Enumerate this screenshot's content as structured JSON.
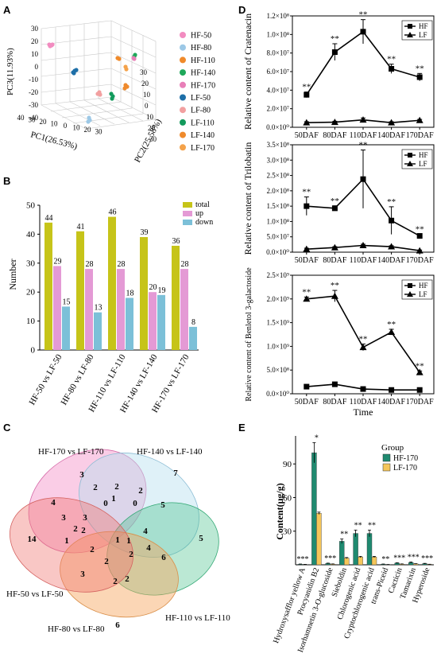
{
  "panels": {
    "A": "A",
    "B": "B",
    "C": "C",
    "D": "D",
    "E": "E"
  },
  "chart_data": [
    {
      "panel": "A",
      "type": "scatter",
      "title": "",
      "xlabel": "PC1(26.53%)",
      "ylabel": "PC2(25.58%)",
      "zlabel": "PC3(11.93%)",
      "x_ticks": [
        "40",
        "30",
        "20",
        "10",
        "0",
        "10",
        "20",
        "30"
      ],
      "y_ticks": [
        "30",
        "20",
        "10",
        "0",
        "10",
        "20",
        "30"
      ],
      "z_ticks": [
        "30",
        "20",
        "10",
        "0",
        "-10",
        "-20",
        "-30",
        "-40"
      ],
      "legend": [
        {
          "name": "HF-50",
          "color": "#f28cc0"
        },
        {
          "name": "HF-80",
          "color": "#9cc8e6"
        },
        {
          "name": "HF-110",
          "color": "#f08a2a"
        },
        {
          "name": "HF-140",
          "color": "#1fa85a"
        },
        {
          "name": "HF-170",
          "color": "#e87fb8"
        },
        {
          "name": "LF-50",
          "color": "#1e6fa8"
        },
        {
          "name": "LF-80",
          "color": "#f2a0a0"
        },
        {
          "name": "LF-110",
          "color": "#139a5c"
        },
        {
          "name": "LF-140",
          "color": "#ef8a2c"
        },
        {
          "name": "LF-170",
          "color": "#f4a24a"
        }
      ],
      "legend_placement": "right",
      "grid": true
    },
    {
      "panel": "B",
      "type": "bar",
      "ylabel": "Number",
      "ylim": [
        0,
        50
      ],
      "yticks": [
        0,
        10,
        20,
        30,
        40,
        50
      ],
      "categories": [
        "HF-50 vs LF-50",
        "HF-80 vs LF-80",
        "HF-110 vs LF-110",
        "HF-140 vs LF-140",
        "HF-170 vs LF-170"
      ],
      "series": [
        {
          "name": "total",
          "color": "#c6c419",
          "values": [
            44,
            41,
            46,
            39,
            36
          ]
        },
        {
          "name": "up",
          "color": "#e49ad5",
          "values": [
            29,
            28,
            28,
            20,
            28
          ]
        },
        {
          "name": "down",
          "color": "#7cc0d8",
          "values": [
            15,
            13,
            18,
            19,
            8
          ]
        }
      ],
      "legend_placement": "top-right"
    },
    {
      "panel": "C",
      "type": "venn",
      "sets": [
        "HF-170 vs LF-170",
        "HF-140 vs LF-140",
        "HF-110 vs LF-110",
        "HF-80 vs LF-80",
        "HF-50 vs LF-50"
      ],
      "region_labels": [
        "3",
        "7",
        "5",
        "6",
        "14",
        "2",
        "3",
        "0",
        "1",
        "2",
        "0",
        "2",
        "5",
        "4",
        "3",
        "2",
        "1",
        "2",
        "2",
        "2",
        "4",
        "1",
        "4",
        "2",
        "2",
        "6",
        "3",
        "1",
        "2"
      ]
    },
    {
      "panel": "D1",
      "type": "line",
      "ylabel": "Relative content of Cratenacin",
      "categories": [
        "50DAF",
        "80DAF",
        "110DAF",
        "140DAF",
        "170DAF"
      ],
      "ylim": [
        0,
        120000000
      ],
      "ytick_labels": [
        "0.0×10⁰",
        "2.0×10⁷",
        "4.0×10⁷",
        "6.0×10⁷",
        "8.0×10⁷",
        "1.0×10⁸",
        "1.2×10⁸"
      ],
      "series": [
        {
          "name": "HF",
          "marker": "square",
          "values": [
            35000000,
            81000000,
            103000000,
            63000000,
            54000000
          ],
          "err": [
            3000000,
            9000000,
            13000000,
            5000000,
            4000000
          ]
        },
        {
          "name": "LF",
          "marker": "triangle",
          "values": [
            5000000,
            5500000,
            8000000,
            5000000,
            7500000
          ],
          "err": [
            1000000,
            1000000,
            2000000,
            1000000,
            1000000
          ]
        }
      ],
      "annotations": [
        "**",
        "**",
        "**",
        "**",
        "**"
      ]
    },
    {
      "panel": "D2",
      "type": "line",
      "ylabel": "Relative content of Trilobatin",
      "categories": [
        "50DAF",
        "80DAF",
        "110DAF",
        "140DAF",
        "170DAF"
      ],
      "ylim": [
        0,
        350000000
      ],
      "ytick_labels": [
        "0.0×10⁰",
        "5.0×10⁷",
        "1.0×10⁸",
        "1.5×10⁸",
        "2.0×10⁸",
        "2.5×10⁸",
        "3.0×10⁸",
        "3.5×10⁸"
      ],
      "series": [
        {
          "name": "HF",
          "marker": "square",
          "values": [
            150000000,
            143000000,
            238000000,
            103000000,
            53000000
          ],
          "err": [
            30000000,
            8000000,
            95000000,
            45000000,
            5000000
          ]
        },
        {
          "name": "LF",
          "marker": "triangle",
          "values": [
            10000000,
            15000000,
            22000000,
            18000000,
            5000000
          ],
          "err": [
            3000000,
            3000000,
            4000000,
            3000000,
            2000000
          ]
        }
      ],
      "annotations": [
        "**",
        "**",
        "**",
        "**",
        "**"
      ]
    },
    {
      "panel": "D3",
      "type": "line",
      "ylabel": "Relative content of Benletol 3-galactoside",
      "xlabel": "Time",
      "categories": [
        "50DAF",
        "80DAF",
        "110DAF",
        "140DAF",
        "170DAF"
      ],
      "ylim": [
        0,
        2500000000
      ],
      "ytick_labels": [
        "0.0×10⁰",
        "5.0×10⁸",
        "1.0×10⁹",
        "1.5×10⁹",
        "2.0×10⁹",
        "2.5×10⁹"
      ],
      "series": [
        {
          "name": "HF",
          "marker": "square",
          "values": [
            150000000,
            200000000,
            100000000,
            80000000,
            80000000
          ],
          "err": [
            20000000,
            20000000,
            10000000,
            10000000,
            10000000
          ]
        },
        {
          "name": "LF",
          "marker": "triangle",
          "values": [
            2000000000,
            2060000000,
            980000000,
            1300000000,
            450000000
          ],
          "err": [
            40000000,
            120000000,
            70000000,
            60000000,
            30000000
          ]
        }
      ],
      "annotations": [
        "**",
        "**",
        "**",
        "**",
        "**"
      ]
    },
    {
      "panel": "E",
      "type": "bar",
      "ylabel": "Content(μg/g)",
      "legend_title": "Group",
      "ylim": [
        0,
        115
      ],
      "yticks": [
        30,
        60,
        90
      ],
      "categories": [
        "Hydroxysafflor yellow A",
        "Procyanidin B2",
        "Isorhamnetin 3-O-glucoside",
        "Sieboldin",
        "Chlorogenic acid",
        "Cryptochlorogenic acid",
        "trans-Piceid",
        "Cacticin",
        "Tamarixin",
        "Hyperoside"
      ],
      "series": [
        {
          "name": "HF-170",
          "color": "#1f8a70",
          "values": [
            0.5,
            100,
            1.2,
            21,
            28,
            28,
            0.5,
            1.5,
            2,
            1
          ],
          "err": [
            0.2,
            9,
            0.3,
            2,
            3,
            3,
            0.2,
            0.3,
            0.5,
            0.3
          ]
        },
        {
          "name": "LF-170",
          "color": "#f5c65a",
          "values": [
            0.3,
            46,
            0.6,
            6,
            7,
            7,
            0.2,
            0.6,
            0.8,
            0.4
          ],
          "err": [
            0.1,
            1,
            0.2,
            0.5,
            0.5,
            0.5,
            0.1,
            0.2,
            0.2,
            0.1
          ]
        }
      ],
      "significance": [
        "***",
        "*",
        "***",
        "**",
        "**",
        "**",
        "**",
        "***",
        "***",
        "***"
      ],
      "legend_placement": "top-right"
    }
  ]
}
